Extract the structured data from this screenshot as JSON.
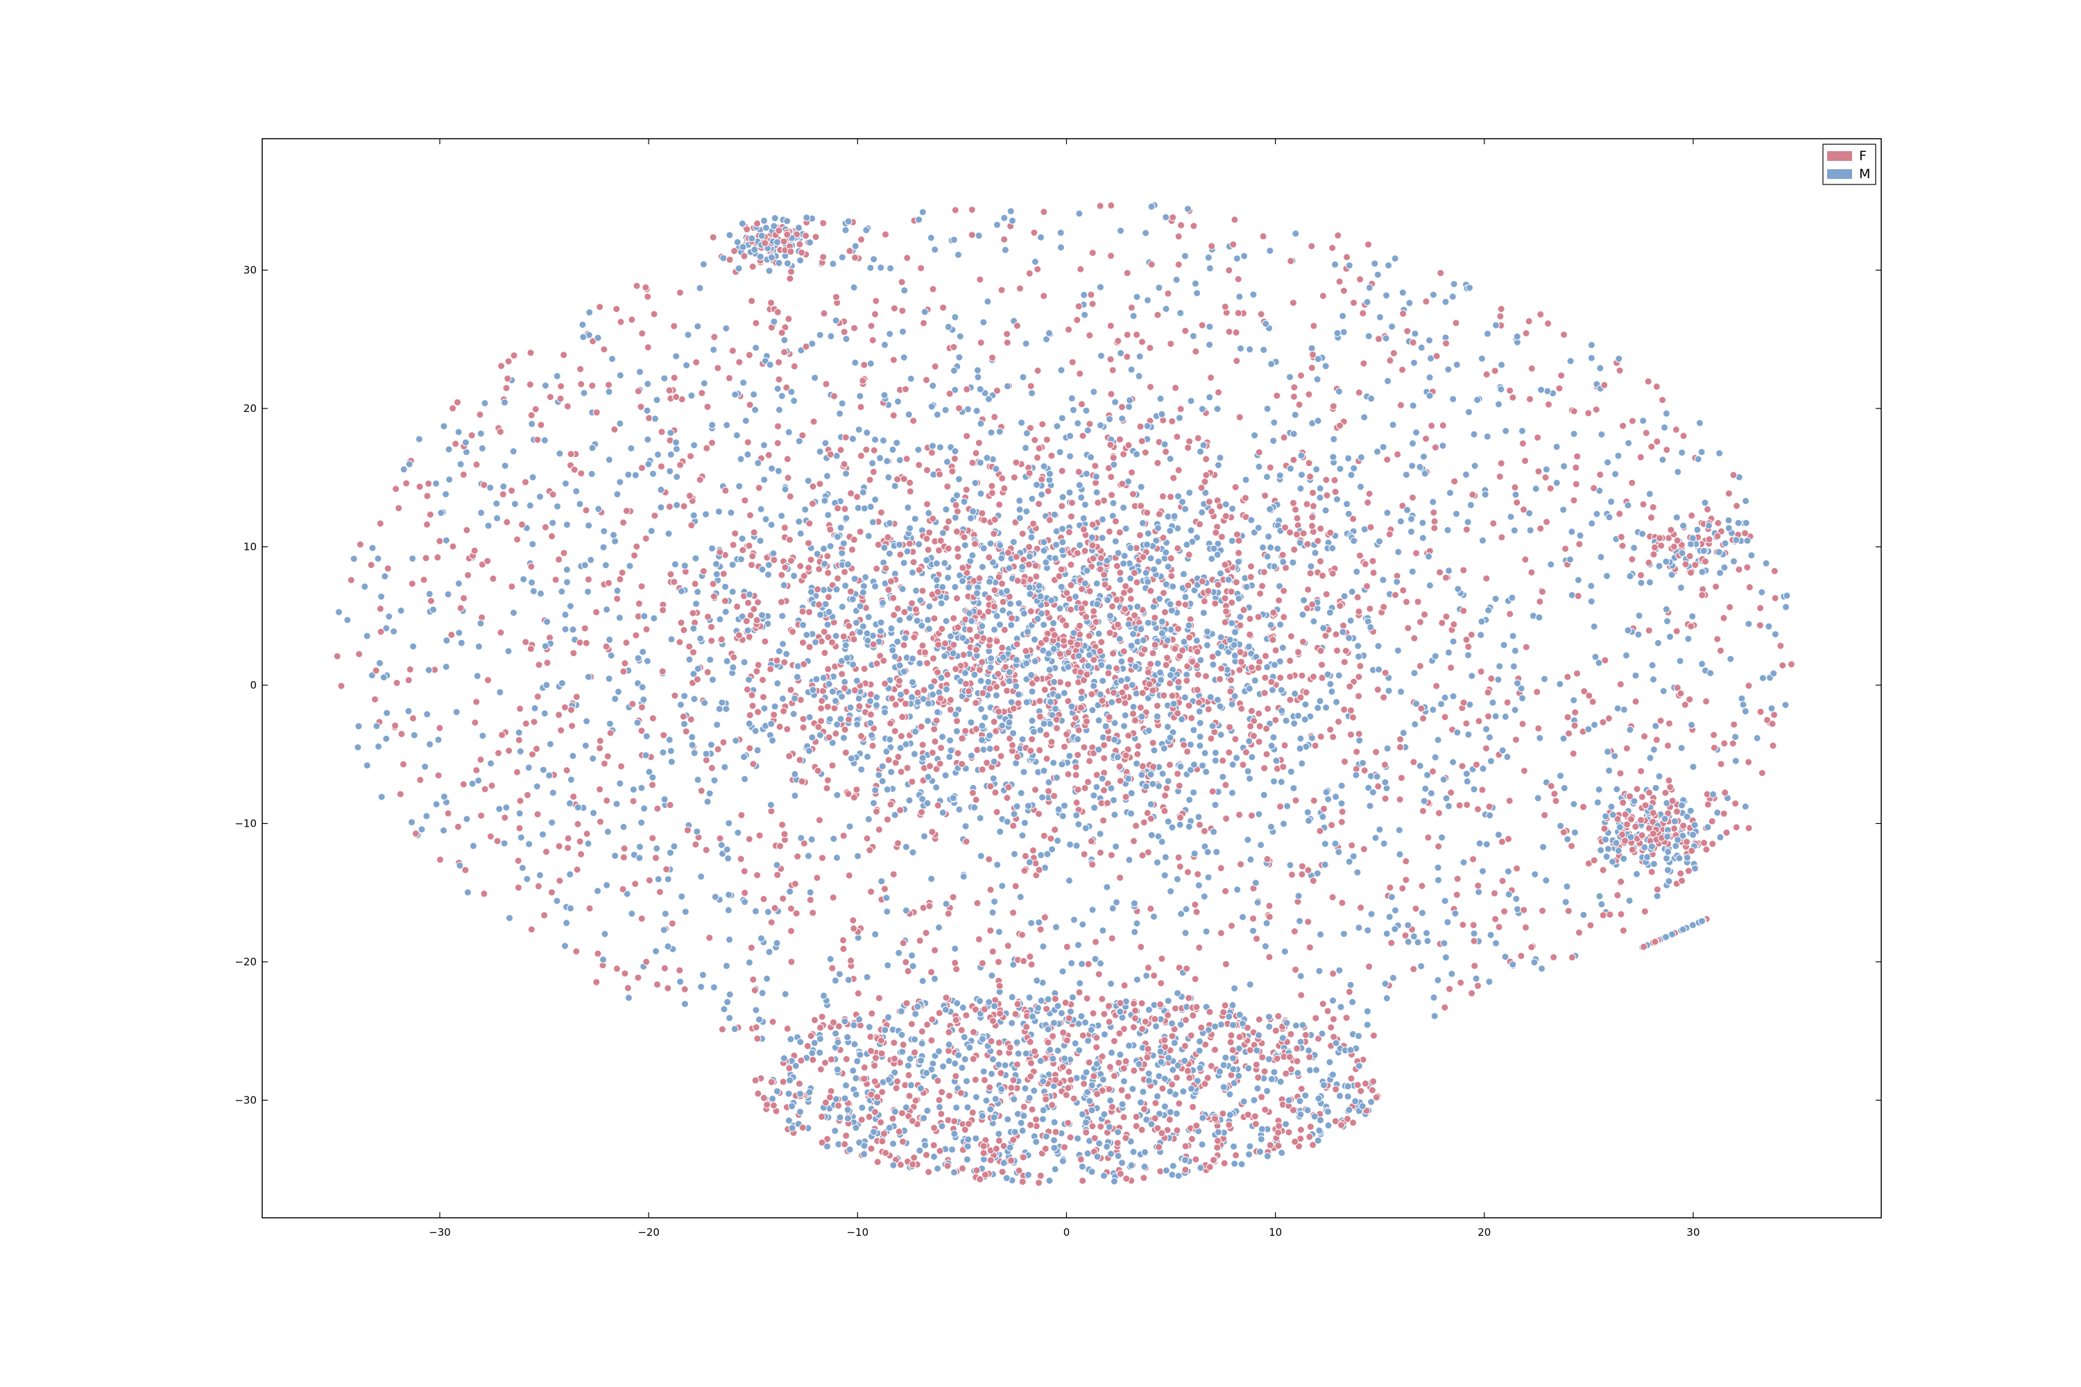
{
  "chart_data": {
    "type": "scatter",
    "title": "",
    "xlabel": "",
    "ylabel": "",
    "xlim": [
      -38.5,
      39
    ],
    "ylim": [
      -38.5,
      39.5
    ],
    "x_ticks": [
      -30,
      -20,
      -10,
      0,
      10,
      20,
      30
    ],
    "y_ticks": [
      -30,
      -20,
      -10,
      0,
      10,
      20,
      30
    ],
    "x_tick_labels": [
      "−30",
      "−20",
      "−10",
      "0",
      "10",
      "20",
      "30"
    ],
    "y_tick_labels": [
      "−30",
      "−20",
      "−10",
      "0",
      "10",
      "20",
      "30"
    ],
    "grid": false,
    "legend_position": "top-right",
    "marker_edge_color": "#ffffff",
    "series": [
      {
        "name": "F",
        "color": "#d4808e"
      },
      {
        "name": "M",
        "color": "#7fa5cf"
      }
    ],
    "regions": [
      {
        "description": "main cloud",
        "center": [
          0,
          5
        ],
        "spread": [
          35,
          32
        ]
      },
      {
        "description": "dense core",
        "center": [
          -1,
          3
        ],
        "spread": [
          14,
          12
        ]
      },
      {
        "description": "lower lobe",
        "center": [
          0,
          -29
        ],
        "spread": [
          15,
          7
        ]
      },
      {
        "description": "top-left cluster",
        "center": [
          -14,
          32
        ],
        "spread": [
          2,
          1.5
        ]
      },
      {
        "description": "right cluster",
        "center": [
          28,
          -10.5
        ],
        "spread": [
          2.5,
          2.5
        ]
      },
      {
        "description": "right edge cluster",
        "center": [
          30,
          10
        ],
        "spread": [
          2.5,
          2
        ]
      },
      {
        "description": "diagonal streak",
        "center": [
          29,
          -18
        ],
        "spread": [
          1.5,
          1
        ]
      }
    ]
  }
}
